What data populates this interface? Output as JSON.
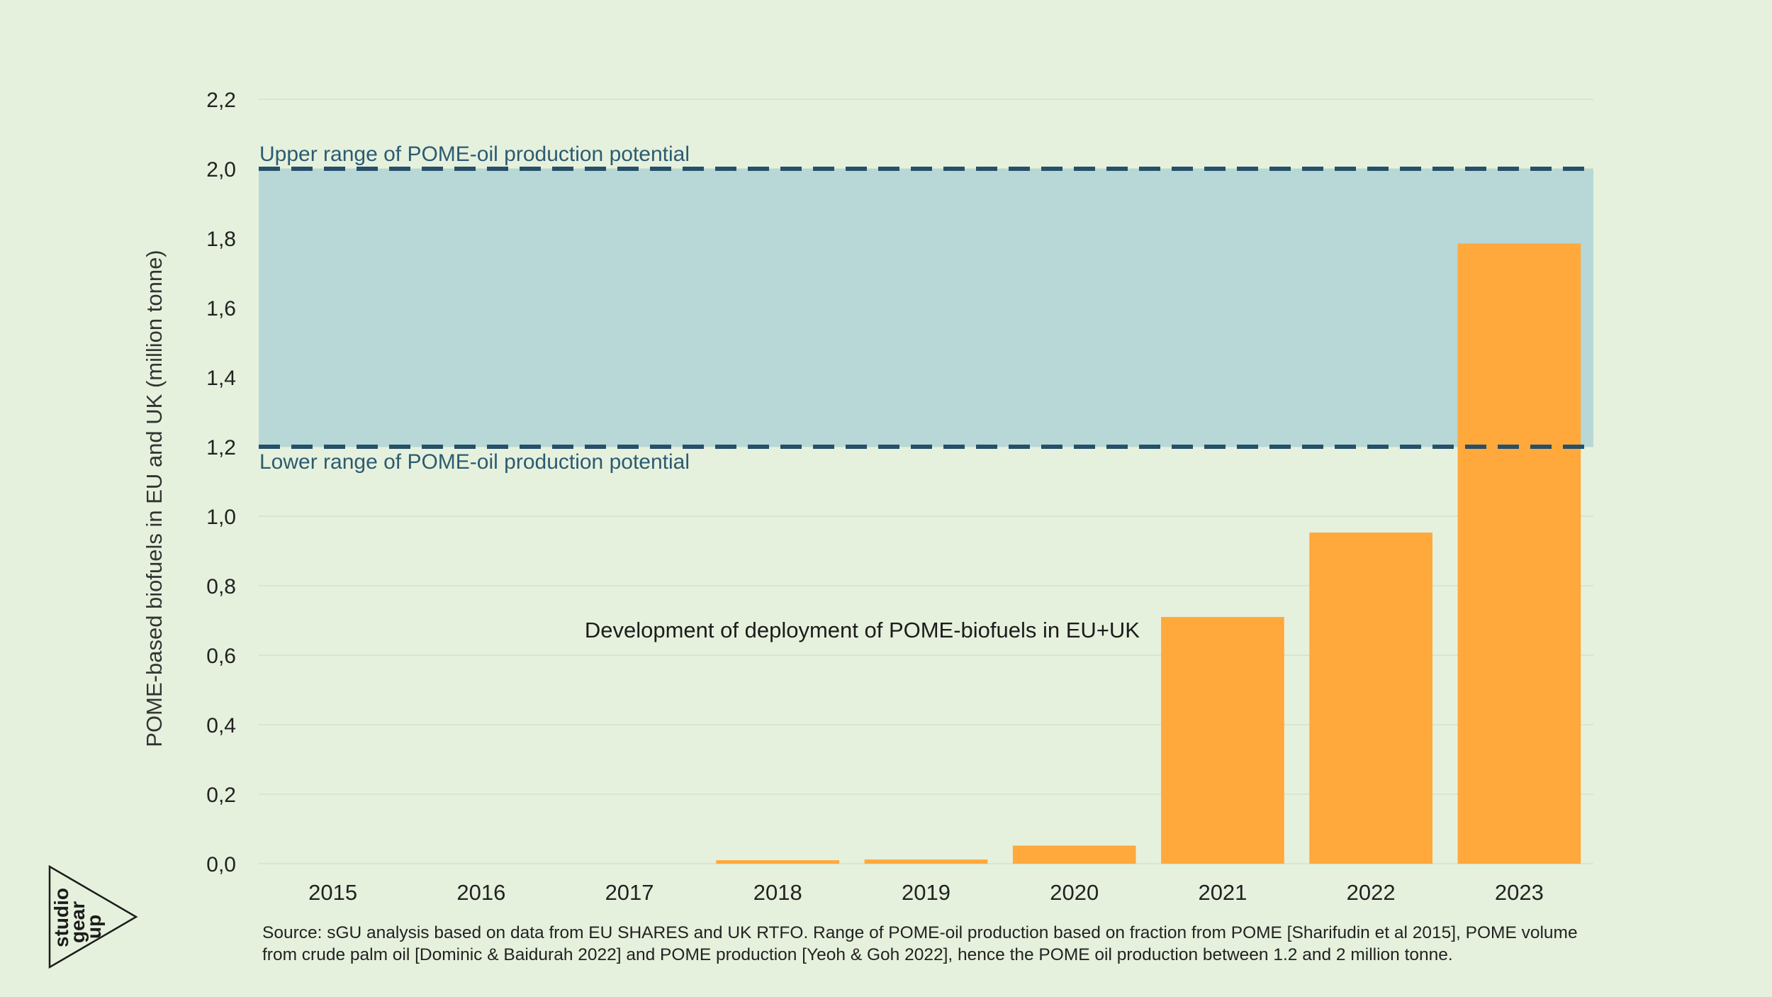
{
  "chart_data": {
    "type": "bar",
    "categories": [
      "2015",
      "2016",
      "2017",
      "2018",
      "2019",
      "2020",
      "2021",
      "2022",
      "2023"
    ],
    "values": [
      0,
      0,
      0,
      0.01,
      0.012,
      0.052,
      0.71,
      0.953,
      1.785
    ],
    "ylabel": "POME-based biofuels in EU and UK (million tonne)",
    "ylim": [
      0,
      2.2
    ],
    "yticks": [
      "0,0",
      "0,2",
      "0,4",
      "0,6",
      "0,8",
      "1,0",
      "1,2",
      "1,4",
      "1,6",
      "1,8",
      "2,0",
      "2,2"
    ],
    "grid": true,
    "bar_color": "#ffa83c",
    "band": {
      "lower": 1.2,
      "upper": 2.0,
      "color": "#b7d8d6",
      "line_color": "#26506a",
      "upper_label": "Upper range of  POME-oil production potential",
      "lower_label": "Lower range of POME-oil production potential"
    },
    "annotation": "Development of deployment of POME-biofuels in EU+UK"
  },
  "source_text": "Source: sGU analysis based on data from EU SHARES and UK RTFO. Range of POME-oil production based on fraction from POME [Sharifudin et al 2015], POME volume from crude palm oil [Dominic & Baidurah 2022] and POME production [Yeoh & Goh 2022], hence the POME oil production between 1.2 and 2 million tonne.",
  "logo": {
    "lines": [
      "studio",
      "gear",
      "up"
    ]
  }
}
